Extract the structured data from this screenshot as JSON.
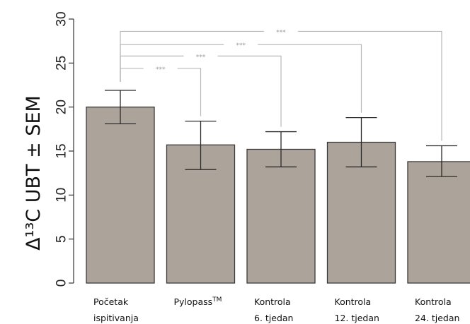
{
  "chart_data": {
    "type": "bar",
    "ylabel": "Δ¹³C UBT ± SEM",
    "ylim": [
      0,
      30
    ],
    "yticks": [
      "0",
      "5",
      "10",
      "15",
      "20",
      "25",
      "30"
    ],
    "categories": [
      {
        "line1": "Početak",
        "line2": "ispitivanja"
      },
      {
        "line1": "Pylopass",
        "sup": "TM",
        "line2": ""
      },
      {
        "line1": "Kontrola",
        "line2": "6. tjedan"
      },
      {
        "line1": "Kontrola",
        "line2": "12. tjedan"
      },
      {
        "line1": "Kontrola",
        "line2": "24. tjedan"
      }
    ],
    "values": [
      20.0,
      15.7,
      15.2,
      16.0,
      13.8
    ],
    "error_low": [
      18.1,
      12.9,
      13.2,
      13.2,
      12.1
    ],
    "error_high": [
      21.9,
      18.4,
      17.2,
      18.8,
      15.6
    ],
    "bar_color": "#aca49b",
    "significance": [
      {
        "from": 0,
        "to": 1,
        "label": "***",
        "level": 24.4
      },
      {
        "from": 0,
        "to": 2,
        "label": "***",
        "level": 25.8
      },
      {
        "from": 0,
        "to": 3,
        "label": "***",
        "level": 27.1
      },
      {
        "from": 0,
        "to": 4,
        "label": "***",
        "level": 28.6
      }
    ]
  }
}
